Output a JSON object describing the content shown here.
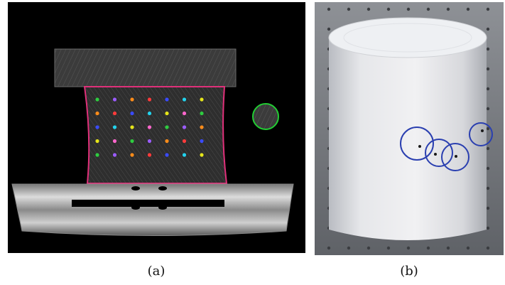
{
  "figure": {
    "captions": {
      "a": "(a)",
      "b": "(b)"
    },
    "panel_a": {
      "description_colors": {
        "background": "#000000",
        "outline": "#e0307a",
        "reference_circle": "#22cc33"
      },
      "marker_colors": [
        "#2ecc40",
        "#ff3b3b",
        "#e5e51a",
        "#9b5cff",
        "#3a4bff",
        "#ff66cc",
        "#ff8c1a",
        "#22d3ee"
      ]
    },
    "panel_b": {
      "marker_color": "#2a3fb0"
    }
  }
}
